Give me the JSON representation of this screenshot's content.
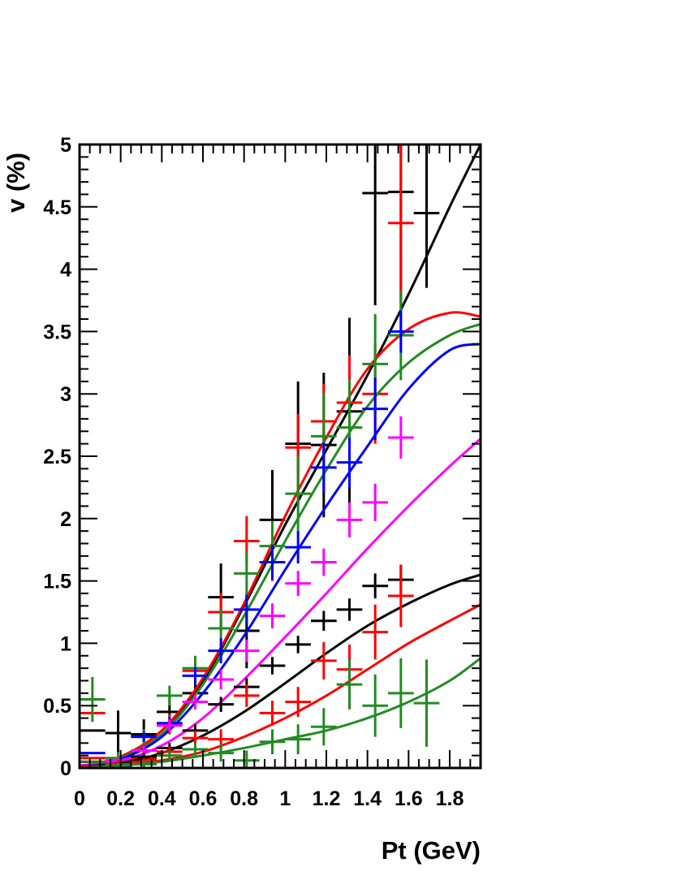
{
  "chart_data": {
    "type": "scatter",
    "title": "",
    "xlabel": "Pt (GeV)",
    "ylabel": "v (%)",
    "xlim": [
      0,
      1.95
    ],
    "ylim": [
      0,
      5
    ],
    "x_ticks": [
      "0",
      "0.2",
      "0.4",
      "0.6",
      "0.8",
      "1",
      "1.2",
      "1.4",
      "1.6",
      "1.8"
    ],
    "y_ticks": [
      "0",
      "0.5",
      "1",
      "1.5",
      "2",
      "2.5",
      "3",
      "3.5",
      "4",
      "4.5",
      "5"
    ],
    "grid": false,
    "legend": "none",
    "x_bin_half_width": 0.0625,
    "x_centers": [
      0.0625,
      0.1875,
      0.3125,
      0.4375,
      0.5625,
      0.6875,
      0.8125,
      0.9375,
      1.0625,
      1.1875,
      1.3125,
      1.4375,
      1.5625,
      1.6875,
      1.8125,
      1.9375
    ],
    "series": [
      {
        "color": "#000000",
        "points": [
          {
            "x": 0.0625,
            "y": 0.3,
            "err": 0.0
          },
          {
            "x": 0.1875,
            "y": 0.28,
            "err": 0.18
          },
          {
            "x": 0.3125,
            "y": 0.27,
            "err": 0.12
          },
          {
            "x": 0.4375,
            "y": 0.45,
            "err": 0.12
          },
          {
            "x": 0.5625,
            "y": 0.6,
            "err": 0.08
          },
          {
            "x": 0.6875,
            "y": 1.37,
            "err": 0.27
          },
          {
            "x": 0.8125,
            "y": 1.1,
            "err": 0.3
          },
          {
            "x": 0.9375,
            "y": 1.99,
            "err": 0.4
          },
          {
            "x": 1.0625,
            "y": 2.6,
            "err": 0.5
          },
          {
            "x": 1.1875,
            "y": 2.59,
            "err": 0.58
          },
          {
            "x": 1.3125,
            "y": 2.86,
            "err": 0.75
          },
          {
            "x": 1.4375,
            "y": 4.61,
            "err": 0.9
          },
          {
            "x": 1.5625,
            "y": 4.62,
            "err": 1.0
          },
          {
            "x": 1.6875,
            "y": 4.45,
            "err": 0.6
          }
        ],
        "fit": [
          [
            0,
            0
          ],
          [
            0.2,
            0.09
          ],
          [
            0.4,
            0.3
          ],
          [
            0.6,
            0.7
          ],
          [
            0.8,
            1.3
          ],
          [
            1.0,
            1.95
          ],
          [
            1.2,
            2.55
          ],
          [
            1.4,
            3.15
          ],
          [
            1.6,
            3.8
          ],
          [
            1.8,
            4.5
          ],
          [
            1.95,
            5.0
          ]
        ]
      },
      {
        "color": "#ff0000",
        "points": [
          {
            "x": 0.0625,
            "y": 0.44,
            "err": 0.0
          },
          {
            "x": 0.1875,
            "y": 0.05,
            "err": 0.05
          },
          {
            "x": 0.3125,
            "y": 0.07,
            "err": 0.06
          },
          {
            "x": 0.4375,
            "y": 0.35,
            "err": 0.08
          },
          {
            "x": 0.5625,
            "y": 0.78,
            "err": 0.1
          },
          {
            "x": 0.6875,
            "y": 1.25,
            "err": 0.15
          },
          {
            "x": 0.8125,
            "y": 1.82,
            "err": 0.2
          },
          {
            "x": 0.9375,
            "y": 1.65,
            "err": 0.15
          },
          {
            "x": 1.0625,
            "y": 2.57,
            "err": 0.27
          },
          {
            "x": 1.1875,
            "y": 2.78,
            "err": 0.3
          },
          {
            "x": 1.3125,
            "y": 2.93,
            "err": 0.38
          },
          {
            "x": 1.4375,
            "y": 3.0,
            "err": 0.4
          },
          {
            "x": 1.5625,
            "y": 4.37,
            "err": 0.65
          }
        ],
        "fit": [
          [
            0,
            0
          ],
          [
            0.2,
            0.09
          ],
          [
            0.4,
            0.3
          ],
          [
            0.6,
            0.72
          ],
          [
            0.8,
            1.32
          ],
          [
            1.0,
            2.02
          ],
          [
            1.2,
            2.65
          ],
          [
            1.4,
            3.2
          ],
          [
            1.6,
            3.52
          ],
          [
            1.8,
            3.65
          ],
          [
            1.95,
            3.62
          ]
        ]
      },
      {
        "color": "#228b22",
        "points": [
          {
            "x": 0.0625,
            "y": 0.55,
            "err": 0.18
          },
          {
            "x": 0.1875,
            "y": 0.08,
            "err": 0.05
          },
          {
            "x": 0.3125,
            "y": 0.25,
            "err": 0.06
          },
          {
            "x": 0.4375,
            "y": 0.58,
            "err": 0.08
          },
          {
            "x": 0.5625,
            "y": 0.8,
            "err": 0.1
          },
          {
            "x": 0.6875,
            "y": 1.12,
            "err": 0.15
          },
          {
            "x": 0.8125,
            "y": 1.56,
            "err": 0.17
          },
          {
            "x": 0.9375,
            "y": 1.78,
            "err": 0.2
          },
          {
            "x": 1.0625,
            "y": 2.2,
            "err": 0.3
          },
          {
            "x": 1.1875,
            "y": 2.66,
            "err": 0.35
          },
          {
            "x": 1.3125,
            "y": 2.73,
            "err": 0.38
          },
          {
            "x": 1.4375,
            "y": 3.24,
            "err": 0.4
          },
          {
            "x": 1.5625,
            "y": 3.47,
            "err": 0.36
          }
        ],
        "fit": [
          [
            0,
            0
          ],
          [
            0.2,
            0.08
          ],
          [
            0.4,
            0.27
          ],
          [
            0.6,
            0.67
          ],
          [
            0.8,
            1.22
          ],
          [
            1.0,
            1.82
          ],
          [
            1.2,
            2.39
          ],
          [
            1.4,
            2.9
          ],
          [
            1.6,
            3.25
          ],
          [
            1.8,
            3.47
          ],
          [
            1.95,
            3.56
          ]
        ]
      },
      {
        "color": "#0000ff",
        "points": [
          {
            "x": 0.0625,
            "y": 0.12,
            "err": 0.0
          },
          {
            "x": 0.1875,
            "y": 0.02,
            "err": 0.02
          },
          {
            "x": 0.3125,
            "y": 0.25,
            "err": 0.04
          },
          {
            "x": 0.4375,
            "y": 0.36,
            "err": 0.05
          },
          {
            "x": 0.5625,
            "y": 0.74,
            "err": 0.07
          },
          {
            "x": 0.6875,
            "y": 0.94,
            "err": 0.1
          },
          {
            "x": 0.8125,
            "y": 1.27,
            "err": 0.12
          },
          {
            "x": 0.9375,
            "y": 1.65,
            "err": 0.14
          },
          {
            "x": 1.0625,
            "y": 1.77,
            "err": 0.13
          },
          {
            "x": 1.1875,
            "y": 2.41,
            "err": 0.2
          },
          {
            "x": 1.3125,
            "y": 2.45,
            "err": 0.2
          },
          {
            "x": 1.4375,
            "y": 2.88,
            "err": 0.25
          },
          {
            "x": 1.5625,
            "y": 3.5,
            "err": 0.17
          }
        ],
        "fit": [
          [
            0,
            0
          ],
          [
            0.2,
            0.07
          ],
          [
            0.4,
            0.25
          ],
          [
            0.6,
            0.6
          ],
          [
            0.8,
            1.06
          ],
          [
            1.0,
            1.59
          ],
          [
            1.2,
            2.1
          ],
          [
            1.4,
            2.58
          ],
          [
            1.6,
            3.04
          ],
          [
            1.8,
            3.35
          ],
          [
            1.95,
            3.4
          ]
        ]
      },
      {
        "color": "#ff00ff",
        "points": [
          {
            "x": 0.0625,
            "y": 0.05,
            "err": 0.0
          },
          {
            "x": 0.1875,
            "y": 0.06,
            "err": 0.03
          },
          {
            "x": 0.3125,
            "y": 0.14,
            "err": 0.04
          },
          {
            "x": 0.4375,
            "y": 0.34,
            "err": 0.05
          },
          {
            "x": 0.5625,
            "y": 0.53,
            "err": 0.06
          },
          {
            "x": 0.6875,
            "y": 0.71,
            "err": 0.08
          },
          {
            "x": 0.8125,
            "y": 0.94,
            "err": 0.09
          },
          {
            "x": 0.9375,
            "y": 1.22,
            "err": 0.1
          },
          {
            "x": 1.0625,
            "y": 1.48,
            "err": 0.1
          },
          {
            "x": 1.1875,
            "y": 1.65,
            "err": 0.11
          },
          {
            "x": 1.3125,
            "y": 1.99,
            "err": 0.14
          },
          {
            "x": 1.4375,
            "y": 2.13,
            "err": 0.15
          },
          {
            "x": 1.5625,
            "y": 2.65,
            "err": 0.17
          }
        ],
        "fit": [
          [
            0,
            0.02
          ],
          [
            0.2,
            0.06
          ],
          [
            0.4,
            0.18
          ],
          [
            0.6,
            0.4
          ],
          [
            0.8,
            0.71
          ],
          [
            1.0,
            1.05
          ],
          [
            1.2,
            1.4
          ],
          [
            1.4,
            1.76
          ],
          [
            1.6,
            2.1
          ],
          [
            1.8,
            2.42
          ],
          [
            1.95,
            2.64
          ]
        ]
      },
      {
        "color": "#000000",
        "points": [
          {
            "x": 0.0625,
            "y": 0.05,
            "err": 0.0
          },
          {
            "x": 0.1875,
            "y": 0.03,
            "err": 0.03
          },
          {
            "x": 0.3125,
            "y": 0.09,
            "err": 0.03
          },
          {
            "x": 0.4375,
            "y": 0.16,
            "err": 0.04
          },
          {
            "x": 0.5625,
            "y": 0.3,
            "err": 0.05
          },
          {
            "x": 0.6875,
            "y": 0.51,
            "err": 0.06
          },
          {
            "x": 0.8125,
            "y": 0.65,
            "err": 0.07
          },
          {
            "x": 0.9375,
            "y": 0.82,
            "err": 0.07
          },
          {
            "x": 1.0625,
            "y": 0.99,
            "err": 0.07
          },
          {
            "x": 1.1875,
            "y": 1.18,
            "err": 0.08
          },
          {
            "x": 1.3125,
            "y": 1.27,
            "err": 0.09
          },
          {
            "x": 1.4375,
            "y": 1.46,
            "err": 0.1
          },
          {
            "x": 1.5625,
            "y": 1.51,
            "err": 0.12
          }
        ],
        "fit": [
          [
            0,
            0.01
          ],
          [
            0.2,
            0.04
          ],
          [
            0.4,
            0.12
          ],
          [
            0.6,
            0.26
          ],
          [
            0.8,
            0.45
          ],
          [
            1.0,
            0.68
          ],
          [
            1.2,
            0.92
          ],
          [
            1.4,
            1.14
          ],
          [
            1.6,
            1.32
          ],
          [
            1.8,
            1.47
          ],
          [
            1.95,
            1.55
          ]
        ]
      },
      {
        "color": "#ff0000",
        "points": [
          {
            "x": 0.0625,
            "y": 0.08,
            "err": 0.0
          },
          {
            "x": 0.1875,
            "y": 0.03,
            "err": 0.03
          },
          {
            "x": 0.3125,
            "y": 0.05,
            "err": 0.03
          },
          {
            "x": 0.4375,
            "y": 0.13,
            "err": 0.04
          },
          {
            "x": 0.5625,
            "y": 0.24,
            "err": 0.06
          },
          {
            "x": 0.6875,
            "y": 0.23,
            "err": 0.08
          },
          {
            "x": 0.8125,
            "y": 0.58,
            "err": 0.09
          },
          {
            "x": 0.9375,
            "y": 0.44,
            "err": 0.1
          },
          {
            "x": 1.0625,
            "y": 0.53,
            "err": 0.12
          },
          {
            "x": 1.1875,
            "y": 0.86,
            "err": 0.15
          },
          {
            "x": 1.3125,
            "y": 0.79,
            "err": 0.2
          },
          {
            "x": 1.4375,
            "y": 1.09,
            "err": 0.22
          },
          {
            "x": 1.5625,
            "y": 1.38,
            "err": 0.25
          }
        ],
        "fit": [
          [
            0,
            0.01
          ],
          [
            0.2,
            0.02
          ],
          [
            0.4,
            0.06
          ],
          [
            0.6,
            0.13
          ],
          [
            0.8,
            0.25
          ],
          [
            1.0,
            0.4
          ],
          [
            1.2,
            0.58
          ],
          [
            1.4,
            0.79
          ],
          [
            1.6,
            1.0
          ],
          [
            1.8,
            1.18
          ],
          [
            1.95,
            1.31
          ]
        ]
      },
      {
        "color": "#228b22",
        "points": [
          {
            "x": 0.0625,
            "y": 0.05,
            "err": 0.0
          },
          {
            "x": 0.1875,
            "y": 0.02,
            "err": 0.02
          },
          {
            "x": 0.3125,
            "y": 0.03,
            "err": 0.03
          },
          {
            "x": 0.4375,
            "y": 0.1,
            "err": 0.04
          },
          {
            "x": 0.5625,
            "y": 0.15,
            "err": 0.05
          },
          {
            "x": 0.6875,
            "y": 0.12,
            "err": 0.07
          },
          {
            "x": 0.8125,
            "y": 0.06,
            "err": 0.08
          },
          {
            "x": 0.9375,
            "y": 0.21,
            "err": 0.1
          },
          {
            "x": 1.0625,
            "y": 0.23,
            "err": 0.12
          },
          {
            "x": 1.1875,
            "y": 0.33,
            "err": 0.15
          },
          {
            "x": 1.3125,
            "y": 0.67,
            "err": 0.2
          },
          {
            "x": 1.4375,
            "y": 0.5,
            "err": 0.25
          },
          {
            "x": 1.5625,
            "y": 0.6,
            "err": 0.28
          },
          {
            "x": 1.6875,
            "y": 0.52,
            "err": 0.35
          }
        ],
        "fit": [
          [
            0,
            0.0
          ],
          [
            0.2,
            0.02
          ],
          [
            0.4,
            0.05
          ],
          [
            0.6,
            0.1
          ],
          [
            0.8,
            0.16
          ],
          [
            1.0,
            0.23
          ],
          [
            1.2,
            0.3
          ],
          [
            1.4,
            0.4
          ],
          [
            1.6,
            0.53
          ],
          [
            1.8,
            0.7
          ],
          [
            1.95,
            0.88
          ]
        ]
      }
    ]
  }
}
